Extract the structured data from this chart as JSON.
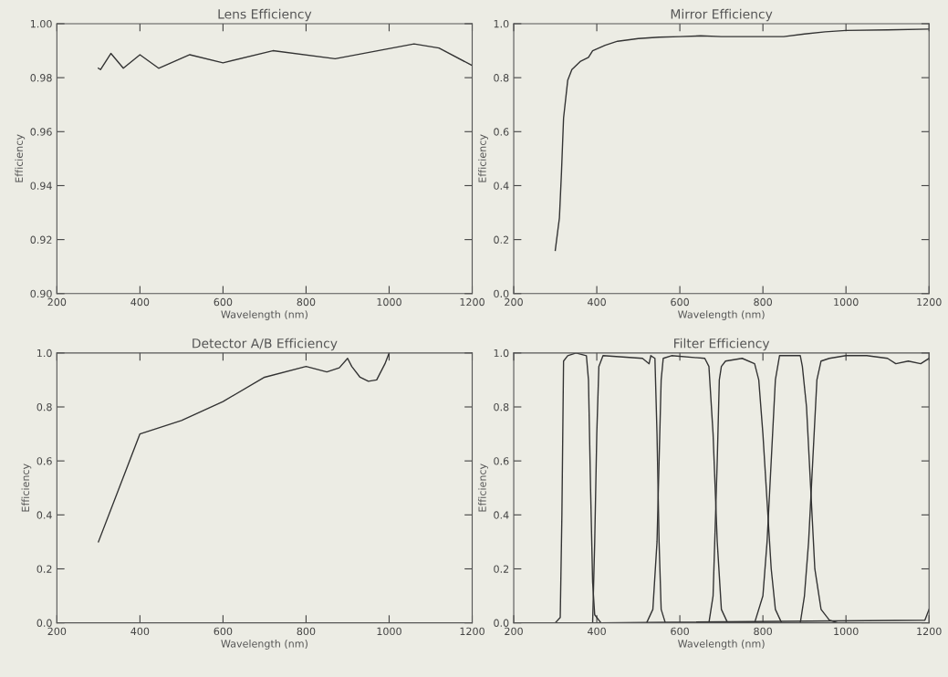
{
  "chart_data": [
    {
      "type": "line",
      "title": "Lens Efficiency",
      "xlabel": "Wavelength (nm)",
      "ylabel": "Efficiency",
      "xlim": [
        200,
        1200
      ],
      "xticks": [
        200,
        400,
        600,
        800,
        1000,
        1200
      ],
      "ylim": [
        0.9,
        1.0
      ],
      "yticks": [
        {
          "value": 0.9,
          "label": "0.90"
        },
        {
          "value": 0.92,
          "label": "0.92"
        },
        {
          "value": 0.94,
          "label": "0.94"
        },
        {
          "value": 0.96,
          "label": "0.96"
        },
        {
          "value": 0.98,
          "label": "0.98"
        },
        {
          "value": 1.0,
          "label": "1.00"
        }
      ],
      "grid": false,
      "legend": false,
      "series": [
        {
          "color": "#333333",
          "x": [
            300,
            305,
            330,
            360,
            400,
            445,
            520,
            600,
            720,
            870,
            1060,
            1120,
            1200
          ],
          "values": [
            0.9835,
            0.983,
            0.989,
            0.9835,
            0.9885,
            0.9835,
            0.9885,
            0.9855,
            0.99,
            0.987,
            0.9925,
            0.991,
            0.9845
          ]
        }
      ]
    },
    {
      "type": "line",
      "title": "Mirror Efficiency",
      "xlabel": "Wavelength (nm)",
      "ylabel": "Efficiency",
      "xlim": [
        200,
        1200
      ],
      "xticks": [
        200,
        400,
        600,
        800,
        1000,
        1200
      ],
      "ylim": [
        0,
        1.0
      ],
      "yticks": [
        {
          "value": 0,
          "label": "0.0"
        },
        {
          "value": 0.2,
          "label": "0.2"
        },
        {
          "value": 0.4,
          "label": "0.4"
        },
        {
          "value": 0.6,
          "label": "0.6"
        },
        {
          "value": 0.8,
          "label": "0.8"
        },
        {
          "value": 1.0,
          "label": "1.0"
        }
      ],
      "grid": false,
      "legend": false,
      "series": [
        {
          "color": "#333333",
          "x": [
            300,
            310,
            315,
            320,
            330,
            340,
            360,
            380,
            390,
            420,
            450,
            500,
            550,
            600,
            650,
            700,
            800,
            850,
            900,
            950,
            1000,
            1100,
            1200
          ],
          "values": [
            0.16,
            0.28,
            0.45,
            0.65,
            0.79,
            0.83,
            0.86,
            0.875,
            0.9,
            0.92,
            0.935,
            0.945,
            0.95,
            0.952,
            0.955,
            0.952,
            0.952,
            0.952,
            0.962,
            0.97,
            0.975,
            0.977,
            0.98
          ]
        }
      ]
    },
    {
      "type": "line",
      "title": "Detector A/B Efficiency",
      "xlabel": "Wavelength (nm)",
      "ylabel": "Efficiency",
      "xlim": [
        200,
        1200
      ],
      "xticks": [
        200,
        400,
        600,
        800,
        1000,
        1200
      ],
      "ylim": [
        0,
        1.0
      ],
      "yticks": [
        {
          "value": 0,
          "label": "0.0"
        },
        {
          "value": 0.2,
          "label": "0.2"
        },
        {
          "value": 0.4,
          "label": "0.4"
        },
        {
          "value": 0.6,
          "label": "0.6"
        },
        {
          "value": 0.8,
          "label": "0.8"
        },
        {
          "value": 1.0,
          "label": "1.0"
        }
      ],
      "grid": false,
      "legend": false,
      "series": [
        {
          "color": "#333333",
          "x": [
            300,
            400,
            500,
            600,
            700,
            800,
            850,
            880,
            900,
            910,
            930,
            950,
            970,
            990,
            1000
          ],
          "values": [
            0.3,
            0.7,
            0.75,
            0.82,
            0.91,
            0.95,
            0.93,
            0.945,
            0.98,
            0.95,
            0.91,
            0.895,
            0.9,
            0.96,
            1.0
          ]
        }
      ]
    },
    {
      "type": "line",
      "title": "Filter Efficiency",
      "xlabel": "Wavelength (nm)",
      "ylabel": "Efficiency",
      "xlim": [
        200,
        1200
      ],
      "xticks": [
        200,
        400,
        600,
        800,
        1000,
        1200
      ],
      "ylim": [
        0,
        1.0
      ],
      "yticks": [
        {
          "value": 0,
          "label": "0.0"
        },
        {
          "value": 0.2,
          "label": "0.2"
        },
        {
          "value": 0.4,
          "label": "0.4"
        },
        {
          "value": 0.6,
          "label": "0.6"
        },
        {
          "value": 0.8,
          "label": "0.8"
        },
        {
          "value": 1.0,
          "label": "1.0"
        }
      ],
      "grid": false,
      "legend": false,
      "series": [
        {
          "color": "#333333",
          "x": [
            300,
            312,
            316,
            320,
            330,
            350,
            375,
            380,
            385,
            390,
            395,
            410,
            1190,
            1200
          ],
          "values": [
            0,
            0.02,
            0.4,
            0.97,
            0.99,
            1.0,
            0.99,
            0.9,
            0.5,
            0.15,
            0.03,
            0,
            0.01,
            0.05
          ]
        },
        {
          "color": "#333333",
          "x": [
            300,
            390,
            395,
            400,
            405,
            415,
            510,
            526,
            530,
            540,
            545,
            550,
            555,
            565,
            1200
          ],
          "values": [
            0,
            0,
            0.3,
            0.7,
            0.95,
            0.99,
            0.98,
            0.96,
            0.99,
            0.98,
            0.7,
            0.3,
            0.05,
            0,
            0
          ]
        },
        {
          "color": "#333333",
          "x": [
            300,
            520,
            535,
            545,
            550,
            555,
            560,
            580,
            660,
            670,
            680,
            690,
            700,
            715,
            1200
          ],
          "values": [
            0,
            0,
            0.05,
            0.3,
            0.6,
            0.9,
            0.98,
            0.99,
            0.98,
            0.95,
            0.7,
            0.3,
            0.05,
            0,
            0
          ]
        },
        {
          "color": "#333333",
          "x": [
            300,
            670,
            680,
            690,
            695,
            700,
            710,
            750,
            780,
            790,
            800,
            810,
            820,
            830,
            845,
            1200
          ],
          "values": [
            0,
            0,
            0.1,
            0.6,
            0.9,
            0.95,
            0.97,
            0.98,
            0.96,
            0.9,
            0.7,
            0.45,
            0.2,
            0.05,
            0,
            0
          ]
        },
        {
          "color": "#333333",
          "x": [
            300,
            780,
            800,
            810,
            820,
            830,
            840,
            890,
            895,
            905,
            915,
            925,
            940,
            960,
            980,
            1200
          ],
          "values": [
            0,
            0,
            0.1,
            0.3,
            0.6,
            0.9,
            0.99,
            0.99,
            0.95,
            0.8,
            0.5,
            0.2,
            0.05,
            0.01,
            0,
            0
          ]
        },
        {
          "color": "#333333",
          "x": [
            300,
            890,
            900,
            910,
            920,
            930,
            940,
            960,
            1000,
            1050,
            1100,
            1120,
            1150,
            1180,
            1200
          ],
          "values": [
            0,
            0,
            0.1,
            0.3,
            0.6,
            0.9,
            0.97,
            0.98,
            0.99,
            0.99,
            0.98,
            0.96,
            0.97,
            0.96,
            0.98
          ]
        }
      ]
    }
  ]
}
